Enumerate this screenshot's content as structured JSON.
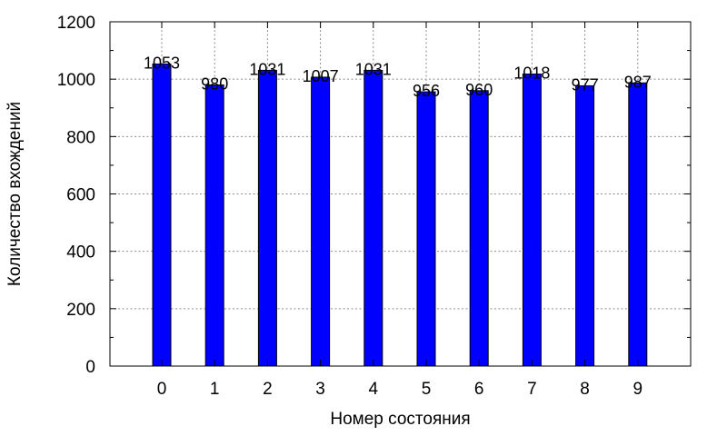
{
  "chart_data": {
    "type": "bar",
    "categories": [
      "0",
      "1",
      "2",
      "3",
      "4",
      "5",
      "6",
      "7",
      "8",
      "9"
    ],
    "values": [
      1053,
      980,
      1031,
      1007,
      1031,
      956,
      960,
      1018,
      977,
      987
    ],
    "data_labels": [
      "1053",
      "980",
      "1031",
      "1007",
      "1031",
      "956",
      "960",
      "1018",
      "977",
      "987"
    ],
    "xlabel": "Номер состояния",
    "ylabel": "Количество вхождений",
    "ylim": [
      0,
      1200
    ],
    "yticks": [
      "0",
      "200",
      "400",
      "600",
      "800",
      "1000",
      "1200"
    ],
    "grid": true,
    "bar_color": "#0000ff"
  }
}
